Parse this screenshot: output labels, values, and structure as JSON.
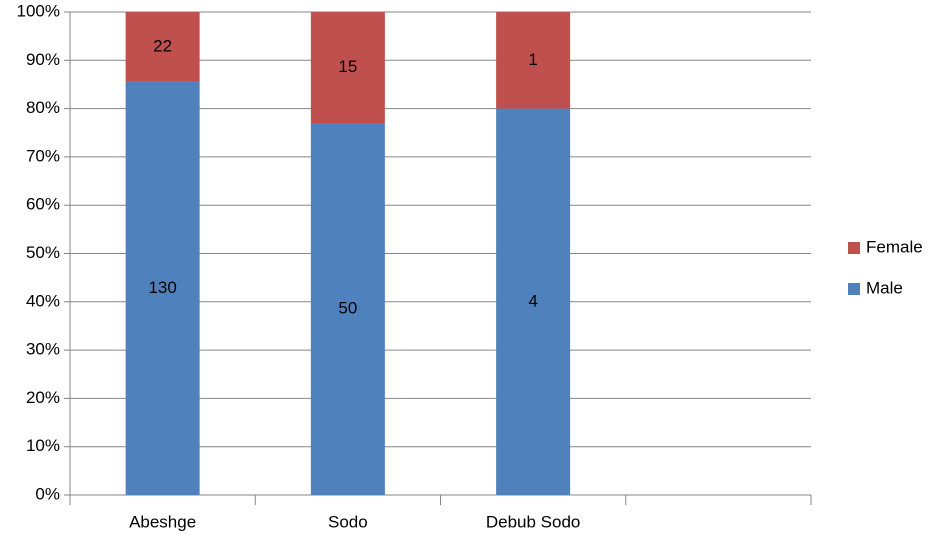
{
  "chart_data": {
    "type": "bar",
    "stacking": "percent",
    "categories": [
      "Abeshge",
      "Sodo",
      "Debub Sodo",
      null
    ],
    "series": [
      {
        "name": "Male",
        "color": "#4f81bd",
        "values": [
          130,
          50,
          4,
          null
        ]
      },
      {
        "name": "Female",
        "color": "#c0504d",
        "values": [
          22,
          15,
          1,
          null
        ]
      }
    ],
    "ylim": [
      0,
      100
    ],
    "yticks": [
      {
        "value": 0,
        "label": "0%"
      },
      {
        "value": 10,
        "label": "10%"
      },
      {
        "value": 20,
        "label": "20%"
      },
      {
        "value": 30,
        "label": "30%"
      },
      {
        "value": 40,
        "label": "40%"
      },
      {
        "value": 50,
        "label": "50%"
      },
      {
        "value": 60,
        "label": "60%"
      },
      {
        "value": 70,
        "label": "70%"
      },
      {
        "value": 80,
        "label": "80%"
      },
      {
        "value": 90,
        "label": "90%"
      },
      {
        "value": 100,
        "label": "100%"
      }
    ],
    "grid": true,
    "legend": "right"
  }
}
